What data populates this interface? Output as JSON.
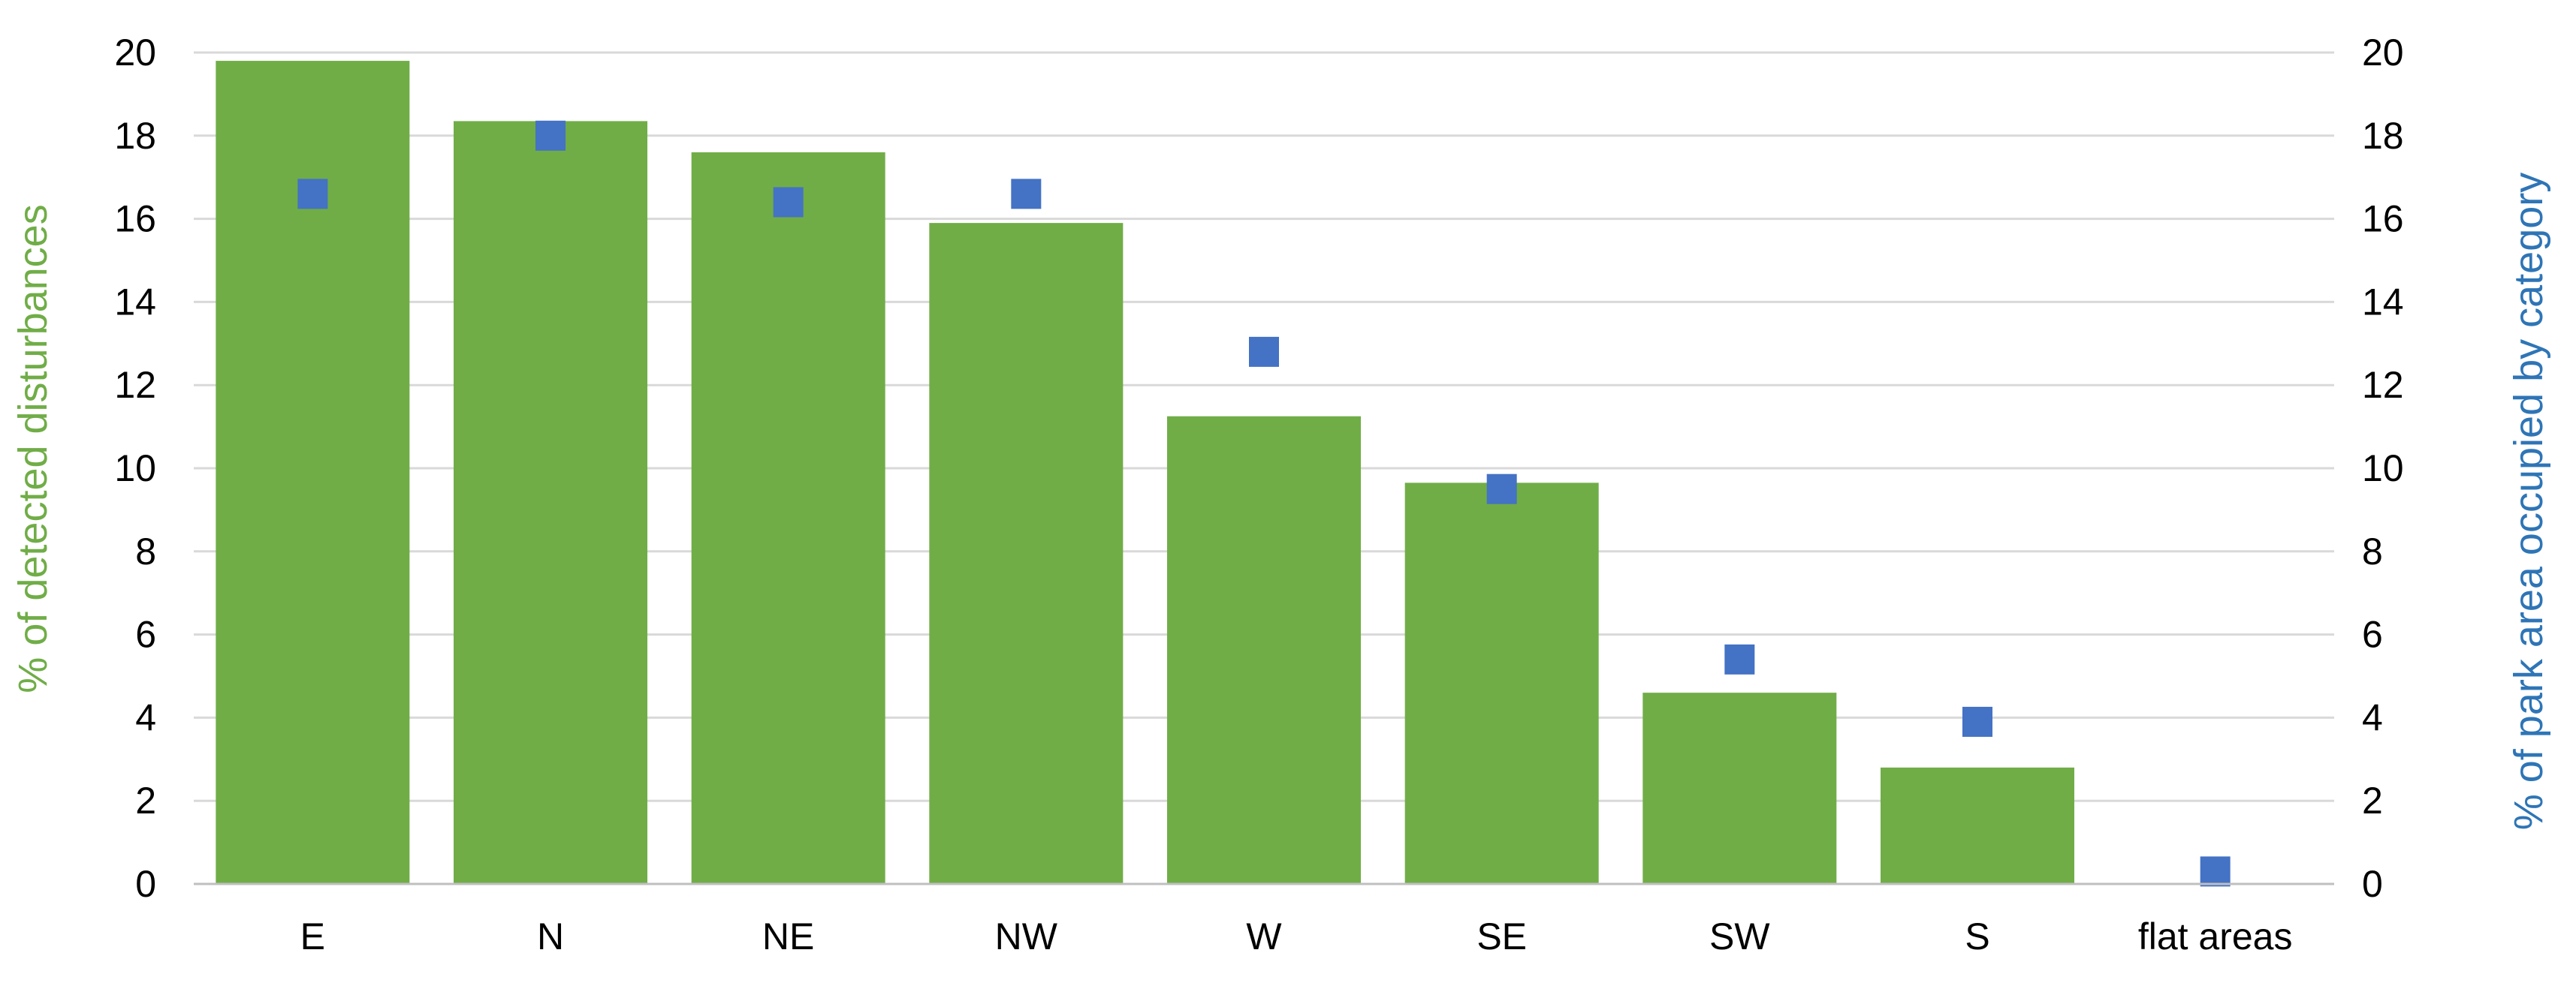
{
  "chart_data": {
    "type": "bar",
    "categories": [
      "E",
      "N",
      "NE",
      "NW",
      "W",
      "SE",
      "SW",
      "S",
      "flat areas"
    ],
    "series": [
      {
        "type": "bar",
        "axis": "left",
        "color": "#70AD47",
        "values": [
          19.8,
          18.35,
          17.6,
          15.9,
          11.25,
          9.65,
          4.6,
          2.8,
          0
        ]
      },
      {
        "type": "scatter",
        "axis": "right",
        "marker": "square",
        "color": "#4472C4",
        "values": [
          16.6,
          18.0,
          16.4,
          16.6,
          12.8,
          9.5,
          5.4,
          3.9,
          0.3
        ]
      }
    ],
    "ylabel": "% of detected disturbances",
    "y2label": "% of park area occupied by category",
    "ylim": [
      0,
      20
    ],
    "y2lim": [
      0,
      20
    ],
    "yticks": [
      "0",
      "2",
      "4",
      "6",
      "8",
      "10",
      "12",
      "14",
      "16",
      "18",
      "20"
    ],
    "y2ticks": [
      "0",
      "2",
      "4",
      "6",
      "8",
      "10",
      "12",
      "14",
      "16",
      "18",
      "20"
    ],
    "grid": true,
    "colors": {
      "ylabel": "#70AD47",
      "y2label": "#2E75B6",
      "grid": "#D9D9D9",
      "axis": "#BFBFBF"
    }
  }
}
